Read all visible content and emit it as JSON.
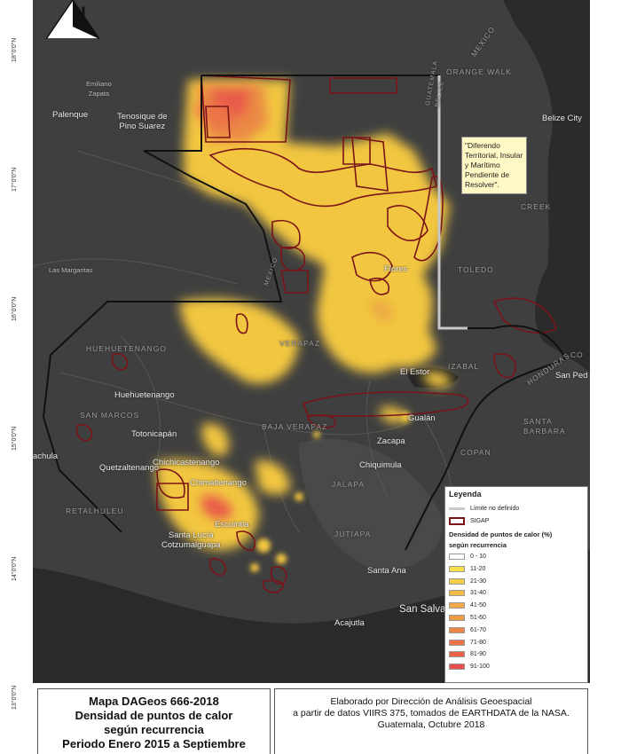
{
  "map": {
    "north_letter": "N",
    "latitude_labels": [
      "18°0'0\"N",
      "17°0'0\"N",
      "16°0'0\"N",
      "15°0'0\"N",
      "14°0'0\"N",
      "13°0'0\"N"
    ],
    "place_labels": {
      "emiliano_zapata": "Emiliano\nZapata",
      "palenque": "Palenque",
      "tenosique": "Tenosique de\nPino Suarez",
      "belize_city": "Belize City",
      "las_margaritas": "Las Margaritas",
      "huehuetenango": "Huehuetenango",
      "totonicapan": "Totonicapán",
      "chichicastenango": "Chichicastenango",
      "quetzaltenango": "Quetzaltenango",
      "chimaltenango": "Chimaltenango",
      "escuintla": "Escuintla",
      "santa_lucia": "Santa Lucía\nCotzumalguapa",
      "chiquimula": "Chiquimula",
      "zacapa": "Zacapa",
      "gualan": "Gualán",
      "el_estor": "El Estor",
      "santa_ana": "Santa Ana",
      "san_salvador": "San Salva",
      "acajutla": "Acajutla",
      "san_pedro": "San Ped",
      "flores": "Flores",
      "achula": "achula"
    },
    "region_labels": {
      "orange_walk": "ORANGE WALK",
      "guatemala_belize": "GUATEMALA\nBELIZE",
      "mexico_top": "MEXICO",
      "mexico_mid": "MEXICO",
      "toledo": "TOLEDO",
      "creek": "CREEK",
      "huehuetenango_dept": "HUEHUETENANGO",
      "san_marcos": "SAN MARCOS",
      "baja_verapaz": "BAJA VERAPAZ",
      "jalapa": "JALAPA",
      "jutiapa": "JUTIAPA",
      "retalhuleu": "RETALHULEU",
      "copan": "COPAN",
      "santa_barbara": "SANTA\nBARBARA",
      "honduras": "HONDURAS",
      "izabal": "IZABAL",
      "verapaz": "VERAPAZ",
      "co": "CO"
    },
    "note_text": "\"Diferendo Territorial, Insular y Marítimo Pendiente de Resolver\"."
  },
  "legend": {
    "title": "Leyenda",
    "limit_label": "Límite no definido",
    "sigap_label": "SIGAP",
    "density_title": "Densidad de puntos de calor (%)",
    "density_subtitle": "según recurrencia",
    "classes": [
      {
        "label": "0 - 10",
        "color": "#ffffff"
      },
      {
        "label": "11-20",
        "color": "#f6e04a"
      },
      {
        "label": "21-30",
        "color": "#f3cf47"
      },
      {
        "label": "31-40",
        "color": "#f2bc45"
      },
      {
        "label": "41-50",
        "color": "#f1aa45"
      },
      {
        "label": "51-60",
        "color": "#f09a45"
      },
      {
        "label": "61-70",
        "color": "#ee8745"
      },
      {
        "label": "71-80",
        "color": "#ec7446"
      },
      {
        "label": "81-90",
        "color": "#ea6148"
      },
      {
        "label": "91-100",
        "color": "#e84c4c"
      }
    ],
    "colors": {
      "sigap": "#7a1418",
      "limit": "#c8c8c8",
      "hot": "#e84c4c",
      "warm": "#f2c244"
    }
  },
  "title_box": {
    "line1": "Mapa DAGeos 666-2018",
    "line2": "Densidad de puntos de calor",
    "line3": "según recurrencia",
    "line4": "Periodo Enero 2015 a Septiembre"
  },
  "credit_box": {
    "line1": "Elaborado por Dirección de Análisis Geoespacial",
    "line2": "a partir de datos VIIRS 375, tomados de EARTHDATA de la NASA.",
    "line3": "Guatemala, Octubre 2018"
  }
}
